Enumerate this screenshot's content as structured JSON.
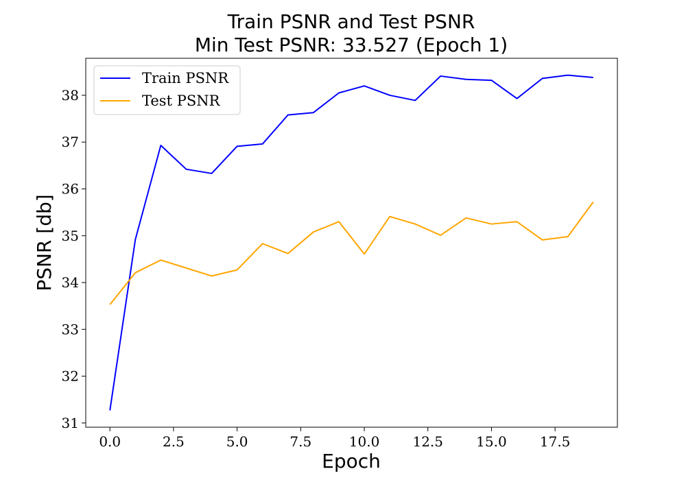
{
  "chart_data": {
    "type": "line",
    "title": "Train PSNR and Test PSNR",
    "subtitle": "Min Test PSNR: 33.527 (Epoch 1)",
    "xlabel": "Epoch",
    "ylabel": "PSNR [db]",
    "xlim": [
      -0.95,
      19.95
    ],
    "ylim": [
      30.91,
      38.79
    ],
    "xticks": [
      0,
      2.5,
      5,
      7.5,
      10,
      12.5,
      15,
      17.5
    ],
    "xtick_labels": [
      "0.0",
      "2.5",
      "5.0",
      "7.5",
      "10.0",
      "12.5",
      "15.0",
      "17.5"
    ],
    "yticks": [
      31,
      32,
      33,
      34,
      35,
      36,
      37,
      38
    ],
    "ytick_labels": [
      "31",
      "32",
      "33",
      "34",
      "35",
      "36",
      "37",
      "38"
    ],
    "grid": false,
    "legend_position": "top-left",
    "x": [
      0,
      1,
      2,
      3,
      4,
      5,
      6,
      7,
      8,
      9,
      10,
      11,
      12,
      13,
      14,
      15,
      16,
      17,
      18,
      19
    ],
    "series": [
      {
        "name": "Train PSNR",
        "color": "#0000ff",
        "values": [
          31.27,
          34.92,
          36.93,
          36.42,
          36.33,
          36.91,
          36.96,
          37.58,
          37.63,
          38.05,
          38.2,
          38.0,
          37.89,
          38.41,
          38.34,
          38.32,
          37.93,
          38.36,
          38.43,
          38.38
        ]
      },
      {
        "name": "Test PSNR",
        "color": "#ffa500",
        "values": [
          33.53,
          34.21,
          34.48,
          34.31,
          34.14,
          34.27,
          34.83,
          34.62,
          35.08,
          35.3,
          34.61,
          35.41,
          35.25,
          35.01,
          35.38,
          35.25,
          35.3,
          34.91,
          34.98,
          35.72
        ]
      }
    ]
  }
}
